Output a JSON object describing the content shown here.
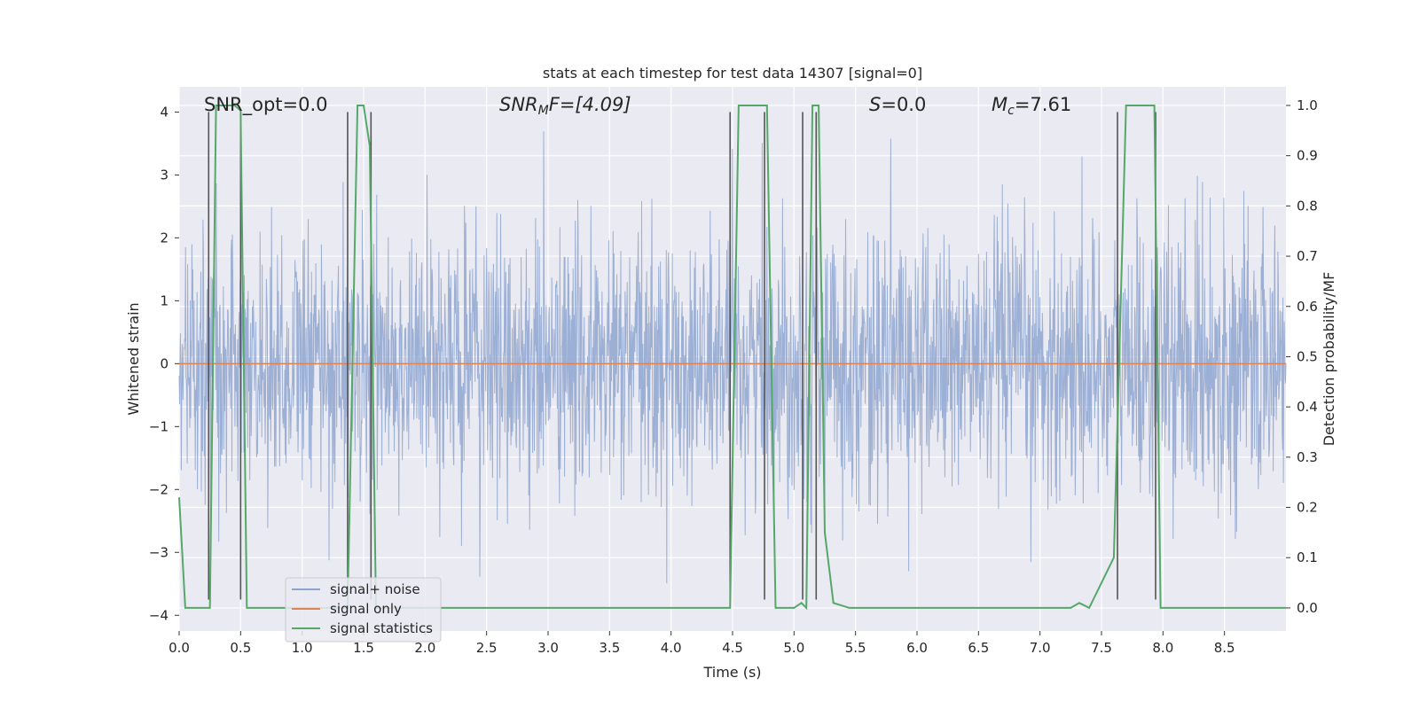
{
  "chart_data": {
    "type": "line",
    "title": "stats at each timestep for test data 14307 [signal=0]",
    "xlabel": "Time (s)",
    "ylabel": "Whitened strain",
    "ylabel_right": "Detection probability/MF",
    "xlim": [
      0,
      9.0
    ],
    "ylim": [
      -4.25,
      4.4
    ],
    "ylim_right": [
      -0.046,
      1.037
    ],
    "x_ticks": [
      0.0,
      0.5,
      1.0,
      1.5,
      2.0,
      2.5,
      3.0,
      3.5,
      4.0,
      4.5,
      5.0,
      5.5,
      6.0,
      6.5,
      7.0,
      7.5,
      8.0,
      8.5
    ],
    "x_tick_labels": [
      "0.0",
      "0.5",
      "1.0",
      "1.5",
      "2.0",
      "2.5",
      "3.0",
      "3.5",
      "4.0",
      "4.5",
      "5.0",
      "5.5",
      "6.0",
      "6.5",
      "7.0",
      "7.5",
      "8.0",
      "8.5"
    ],
    "y_ticks": [
      -4,
      -3,
      -2,
      -1,
      0,
      1,
      2,
      3,
      4
    ],
    "y_tick_labels": [
      "−4",
      "−3",
      "−2",
      "−1",
      "0",
      "1",
      "2",
      "3",
      "4"
    ],
    "y_right_ticks": [
      0.0,
      0.1,
      0.2,
      0.3,
      0.4,
      0.5,
      0.6,
      0.7,
      0.8,
      0.9,
      1.0
    ],
    "y_right_tick_labels": [
      "0.0",
      "0.1",
      "0.2",
      "0.3",
      "0.4",
      "0.5",
      "0.6",
      "0.7",
      "0.8",
      "0.9",
      "1.0"
    ],
    "grid": true,
    "legend_position": "lower-left",
    "annotations": {
      "snr_opt": "SNR_opt=0.0",
      "snr_mf_name": "SNR",
      "snr_mf_sub": "M",
      "snr_mf_rest": "F=[4.09]",
      "s_name": "S",
      "s_rest": "=0.0",
      "mc_name": "M",
      "mc_sub": "c",
      "mc_rest": "=7.61"
    },
    "series": [
      {
        "name": "signal+ noise",
        "color": "#8ea4cf",
        "axis": "left",
        "description": "whitened noise, roughly Gaussian, amplitude mostly within ±2 with peaks up to about ±4"
      },
      {
        "name": "signal only",
        "color": "#dd8452",
        "axis": "left",
        "x": [
          0,
          9.0
        ],
        "y": [
          0,
          0
        ]
      },
      {
        "name": "signal statistics",
        "color": "#55a868",
        "axis": "right",
        "x": [
          0.0,
          0.05,
          0.15,
          0.25,
          0.3,
          0.45,
          0.5,
          0.55,
          0.6,
          1.3,
          1.37,
          1.45,
          1.5,
          1.55,
          1.6,
          1.7,
          4.2,
          4.48,
          4.55,
          4.7,
          4.78,
          4.85,
          5.0,
          5.06,
          5.1,
          5.15,
          5.2,
          5.25,
          5.32,
          5.45,
          7.25,
          7.32,
          7.4,
          7.6,
          7.7,
          7.93,
          7.98,
          8.05,
          9.0
        ],
        "y": [
          0.22,
          0.0,
          0.0,
          0.0,
          1.0,
          1.0,
          0.99,
          0.0,
          0.0,
          0.0,
          0.0,
          1.0,
          1.0,
          0.92,
          0.0,
          0.0,
          0.0,
          0.0,
          1.0,
          1.0,
          1.0,
          0.0,
          0.0,
          0.01,
          0.0,
          1.0,
          1.0,
          0.15,
          0.01,
          0.0,
          0.0,
          0.01,
          0.0,
          0.1,
          1.0,
          1.0,
          0.0,
          0.0,
          0.0
        ]
      }
    ],
    "event_lines": [
      0.24,
      0.5,
      1.37,
      1.56,
      4.48,
      4.76,
      5.07,
      5.18,
      7.63,
      7.94
    ],
    "event_line_color": "#555555"
  }
}
